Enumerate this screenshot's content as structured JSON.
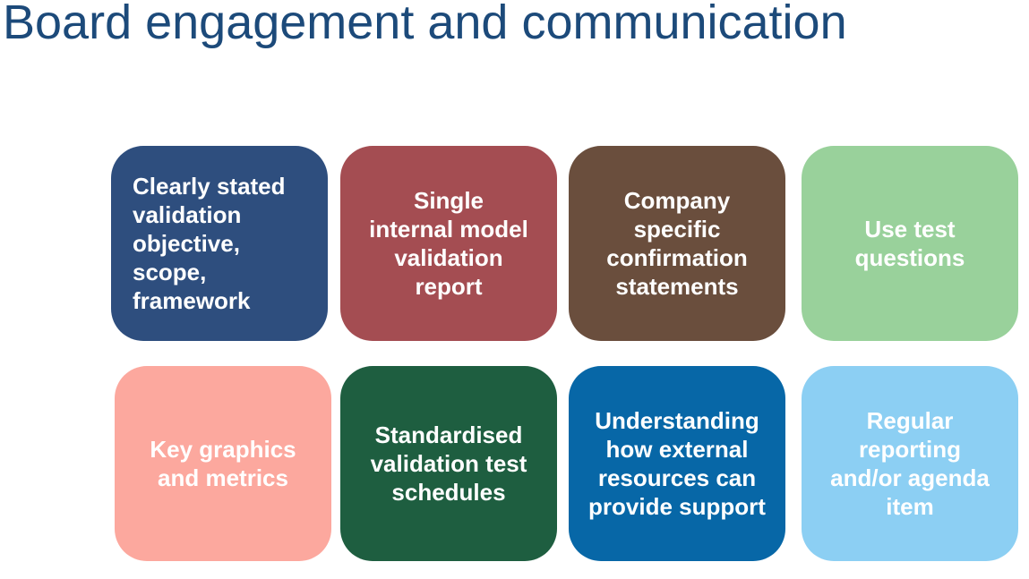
{
  "title": "Board engagement and communication",
  "tiles": [
    {
      "label": "Clearly stated\nvalidation\nobjective,\nscope,\nframework",
      "color": "#2e4e7e"
    },
    {
      "label": "Single\ninternal model\nvalidation\nreport",
      "color": "#a44d52"
    },
    {
      "label": "Company\nspecific\nconfirmation\nstatements",
      "color": "#6a4e3d"
    },
    {
      "label": "Use test\nquestions",
      "color": "#99d19b"
    },
    {
      "label": "Key graphics\nand metrics",
      "color": "#fca89e"
    },
    {
      "label": "Standardised\nvalidation test\nschedules",
      "color": "#1e5e40"
    },
    {
      "label": "Understanding\nhow external\nresources can\nprovide support",
      "color": "#0767a7"
    },
    {
      "label": "Regular\nreporting\nand/or agenda\nitem",
      "color": "#8ccff3"
    }
  ]
}
